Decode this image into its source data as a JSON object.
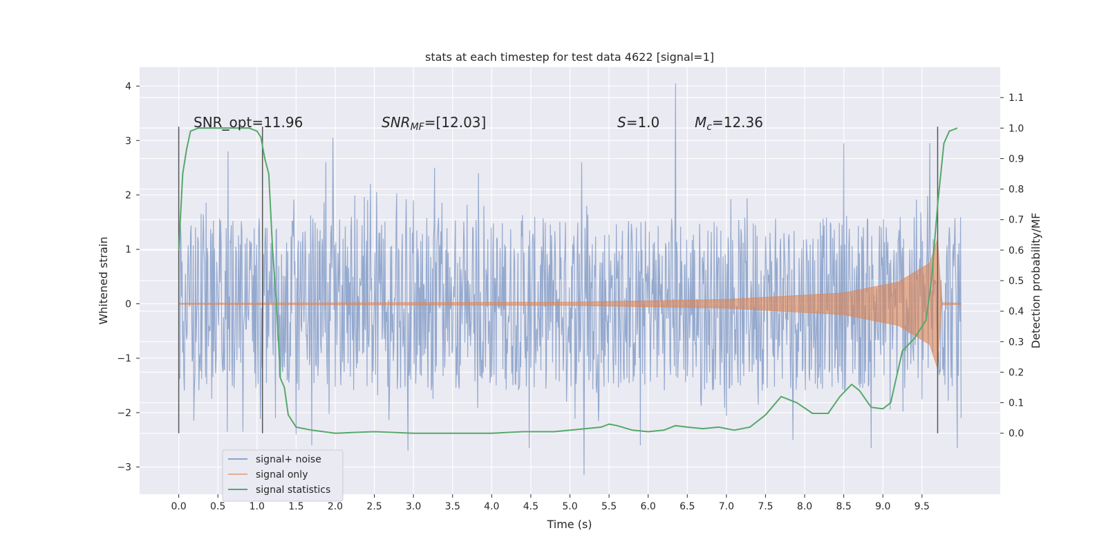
{
  "chart_data": {
    "type": "line",
    "title": "stats at each timestep for test data 4622 [signal=1]",
    "xlabel": "Time (s)",
    "ylabel": "Whitened strain",
    "y2label": "Detection probability/MF",
    "xlim": [
      -0.5,
      10.5
    ],
    "ylim": [
      -3.5,
      4.35
    ],
    "y2lim": [
      -0.2,
      1.2
    ],
    "xticks": [
      "0.0",
      "0.5",
      "1.0",
      "1.5",
      "2.0",
      "2.5",
      "3.0",
      "3.5",
      "4.0",
      "4.5",
      "5.0",
      "5.5",
      "6.0",
      "6.5",
      "7.0",
      "7.5",
      "8.0",
      "8.5",
      "9.0",
      "9.5"
    ],
    "yticks": [
      "4",
      "3",
      "2",
      "1",
      "0",
      "−1",
      "−2",
      "−3"
    ],
    "y2ticks": [
      "1.1",
      "1.0",
      "0.9",
      "0.8",
      "0.7",
      "0.6",
      "0.5",
      "0.4",
      "0.3",
      "0.2",
      "0.1",
      "0.0"
    ],
    "grid": true,
    "legend_position": "lower-left",
    "annotations": {
      "snr_opt": "SNR_opt=11.96",
      "snr_mf_label": "SNR",
      "snr_mf_sub": "MF",
      "snr_mf_value": "=[12.03]",
      "s_label": "S",
      "s_value": "=1.0",
      "mc_label": "M",
      "mc_sub": "c",
      "mc_value": "=12.36"
    },
    "vertical_lines_x": [
      0.0,
      1.07,
      9.7
    ],
    "series": [
      {
        "name": "signal+ noise",
        "color": "#4c72b0",
        "x_range": [
          0.0,
          10.0
        ],
        "envelope_min": -1.6,
        "envelope_max": 1.6,
        "peaks": [
          {
            "x": 0.63,
            "y": 2.8
          },
          {
            "x": 1.88,
            "y": 2.6
          },
          {
            "x": 1.97,
            "y": 3.05
          },
          {
            "x": 2.45,
            "y": 2.2
          },
          {
            "x": 3.27,
            "y": 2.5
          },
          {
            "x": 3.83,
            "y": 2.4
          },
          {
            "x": 5.15,
            "y": 2.6
          },
          {
            "x": 6.35,
            "y": 4.05
          },
          {
            "x": 8.5,
            "y": 2.95
          },
          {
            "x": 9.6,
            "y": 2.95
          },
          {
            "x": 0.62,
            "y": -2.35
          },
          {
            "x": 0.82,
            "y": -2.35
          },
          {
            "x": 1.5,
            "y": -2.4
          },
          {
            "x": 1.7,
            "y": -2.6
          },
          {
            "x": 2.93,
            "y": -2.7
          },
          {
            "x": 4.48,
            "y": -2.65
          },
          {
            "x": 5.18,
            "y": -3.15
          },
          {
            "x": 5.9,
            "y": -2.6
          },
          {
            "x": 7.85,
            "y": -2.5
          },
          {
            "x": 8.85,
            "y": -2.65
          },
          {
            "x": 9.95,
            "y": -2.65
          }
        ]
      },
      {
        "name": "signal only",
        "color": "#dd8452",
        "x_range": [
          0.0,
          10.0
        ],
        "envelope": [
          [
            0.0,
            0.01
          ],
          [
            5.0,
            0.03
          ],
          [
            7.0,
            0.08
          ],
          [
            8.5,
            0.2
          ],
          [
            9.2,
            0.4
          ],
          [
            9.6,
            0.75
          ],
          [
            9.7,
            1.2
          ],
          [
            9.75,
            0.02
          ],
          [
            10.0,
            0.01
          ]
        ]
      },
      {
        "name": "signal statistics",
        "color": "#55a868",
        "x": [
          0.0,
          0.05,
          0.1,
          0.15,
          0.25,
          0.5,
          0.9,
          1.0,
          1.05,
          1.1,
          1.15,
          1.2,
          1.25,
          1.3,
          1.35,
          1.4,
          1.5,
          1.7,
          2.0,
          2.5,
          3.0,
          3.5,
          4.0,
          4.4,
          4.8,
          5.2,
          5.4,
          5.5,
          5.6,
          5.8,
          6.0,
          6.2,
          6.35,
          6.5,
          6.7,
          6.9,
          7.1,
          7.3,
          7.5,
          7.7,
          7.9,
          8.1,
          8.3,
          8.45,
          8.6,
          8.7,
          8.85,
          9.0,
          9.1,
          9.25,
          9.4,
          9.55,
          9.62,
          9.7,
          9.78,
          9.85,
          9.95
        ],
        "y": [
          0.6,
          0.85,
          0.93,
          0.99,
          1.0,
          1.0,
          1.0,
          0.99,
          0.97,
          0.9,
          0.85,
          0.6,
          0.42,
          0.18,
          0.15,
          0.06,
          0.02,
          0.01,
          0.0,
          0.005,
          0.0,
          0.0,
          0.0,
          0.005,
          0.005,
          0.015,
          0.02,
          0.03,
          0.025,
          0.01,
          0.005,
          0.01,
          0.025,
          0.02,
          0.015,
          0.02,
          0.01,
          0.02,
          0.06,
          0.12,
          0.1,
          0.065,
          0.065,
          0.12,
          0.16,
          0.14,
          0.085,
          0.08,
          0.1,
          0.27,
          0.31,
          0.37,
          0.5,
          0.75,
          0.95,
          0.99,
          1.0
        ]
      }
    ]
  }
}
